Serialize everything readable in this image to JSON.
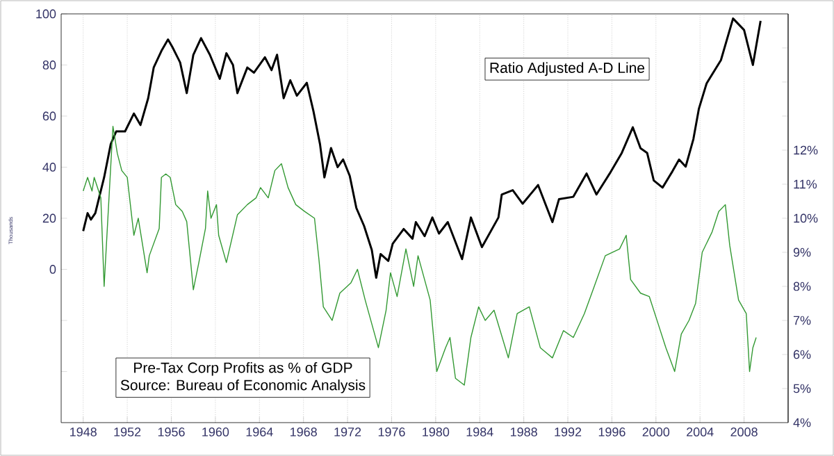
{
  "chart_data": {
    "type": "line",
    "ylabel": "Thousands",
    "xlim": [
      1946,
      2012
    ],
    "xticks": [
      1948,
      1952,
      1956,
      1960,
      1964,
      1968,
      1972,
      1976,
      1980,
      1984,
      1988,
      1992,
      1996,
      2000,
      2004,
      2008
    ],
    "ylim": [
      -60,
      100
    ],
    "yticks": [
      {
        "value": -40,
        "label": null
      },
      {
        "value": -20,
        "label": null
      },
      0,
      20,
      40,
      60,
      80,
      100
    ],
    "y2lim": [
      4,
      16
    ],
    "y2ticks": [
      {
        "value": 4,
        "label": "4%"
      },
      {
        "value": 5,
        "label": "5%"
      },
      {
        "value": 6,
        "label": "6%"
      },
      {
        "value": 7,
        "label": "7%"
      },
      {
        "value": 8,
        "label": "8%"
      },
      {
        "value": 9,
        "label": "9%"
      },
      {
        "value": 10,
        "label": "10%"
      },
      {
        "value": 11,
        "label": "11%"
      },
      {
        "value": 12,
        "label": "12%"
      },
      {
        "value": 13,
        "label": null
      },
      {
        "value": 14,
        "label": null
      },
      {
        "value": 15,
        "label": null
      },
      {
        "value": 16,
        "label": null
      }
    ],
    "grid": "x",
    "marker": "none",
    "line_style": "solid",
    "annotations": [
      "Source: Bureau of Economic Analysis"
    ],
    "series": [
      {
        "name": "Ratio Adjusted A-D Line",
        "color": "#000000",
        "axis": "y",
        "x": [
          1948.0,
          1948.4,
          1948.7,
          1949.1,
          1949.9,
          1950.5,
          1951.0,
          1951.8,
          1952.6,
          1953.2,
          1953.9,
          1954.4,
          1955.1,
          1955.7,
          1956.1,
          1956.8,
          1957.4,
          1958.0,
          1958.7,
          1959.5,
          1960.4,
          1961.0,
          1961.6,
          1962.0,
          1962.9,
          1963.5,
          1964.5,
          1965.1,
          1965.6,
          1966.2,
          1966.8,
          1967.4,
          1968.3,
          1968.9,
          1969.5,
          1969.9,
          1970.5,
          1971.1,
          1971.6,
          1972.2,
          1972.8,
          1973.5,
          1974.2,
          1974.6,
          1975.0,
          1975.7,
          1976.1,
          1977.1,
          1977.9,
          1978.2,
          1979.0,
          1979.7,
          1980.3,
          1981.1,
          1982.4,
          1983.2,
          1984.2,
          1985.7,
          1986.0,
          1987.0,
          1987.9,
          1989.3,
          1990.6,
          1991.2,
          1992.5,
          1993.7,
          1994.6,
          1995.8,
          1996.9,
          1997.9,
          1998.6,
          1999.2,
          1999.8,
          2000.6,
          2001.5,
          2002.1,
          2002.7,
          2003.4,
          2003.9,
          2004.6,
          2005.9,
          2007.0,
          2008.0,
          2008.8,
          2009.5
        ],
        "values": [
          15,
          22,
          19.5,
          22,
          36,
          49,
          54,
          54,
          61,
          56.5,
          67,
          79,
          85.5,
          90,
          87,
          81,
          69,
          84,
          90.5,
          84,
          74.6,
          84.6,
          80,
          69,
          79,
          77,
          83,
          78,
          84,
          67,
          74,
          68,
          73,
          62,
          49,
          36,
          47.5,
          40,
          43,
          36.6,
          24,
          17,
          7.6,
          -3.3,
          6,
          3.3,
          10,
          15.8,
          12,
          18.5,
          13,
          20.3,
          14,
          18.5,
          4,
          20.3,
          8.7,
          20.3,
          29.3,
          31,
          25.7,
          33,
          18.5,
          27.5,
          28.4,
          37.5,
          29.3,
          37.5,
          45.6,
          55.6,
          47.4,
          45.6,
          34.8,
          32,
          38.4,
          43,
          40.2,
          51,
          62.9,
          72.8,
          81.9,
          98.2,
          93.7,
          80,
          97.3
        ]
      },
      {
        "name": "Pre-Tax Corp Profits as % of GDP",
        "color": "#339933",
        "axis": "y2",
        "x": [
          1948.0,
          1948.4,
          1948.8,
          1949.0,
          1949.6,
          1949.9,
          1950.7,
          1951.1,
          1951.5,
          1952.0,
          1952.6,
          1953.0,
          1953.8,
          1954.0,
          1954.9,
          1955.1,
          1955.5,
          1955.9,
          1956.4,
          1957.0,
          1957.4,
          1958.0,
          1958.5,
          1959.1,
          1959.3,
          1959.6,
          1960.1,
          1960.3,
          1961.0,
          1962.0,
          1962.9,
          1963.7,
          1964.1,
          1964.8,
          1965.4,
          1966.0,
          1966.6,
          1967.3,
          1968.1,
          1969.0,
          1969.4,
          1969.8,
          1970.6,
          1971.3,
          1972.3,
          1972.9,
          1973.6,
          1974.8,
          1975.5,
          1975.9,
          1976.5,
          1977.3,
          1978.0,
          1978.4,
          1979.5,
          1980.1,
          1980.9,
          1981.3,
          1981.8,
          1982.6,
          1983.2,
          1983.9,
          1984.5,
          1985.3,
          1986.6,
          1987.4,
          1988.5,
          1989.5,
          1990.6,
          1991.6,
          1992.5,
          1993.5,
          1994.4,
          1995.4,
          1996.7,
          1997.3,
          1997.7,
          1998.6,
          1999.4,
          2000.2,
          2000.9,
          2001.7,
          2002.3,
          2003.0,
          2003.6,
          2004.2,
          2005.1,
          2005.7,
          2006.3,
          2006.7,
          2007.5,
          2008.2,
          2008.5,
          2008.8,
          2009.1
        ],
        "values": [
          10.8,
          11.2,
          10.8,
          11.2,
          10.6,
          8.0,
          12.7,
          11.9,
          11.4,
          11.2,
          9.5,
          10.0,
          8.4,
          8.9,
          9.7,
          11.2,
          11.3,
          11.2,
          10.4,
          10.2,
          9.9,
          7.9,
          8.7,
          9.7,
          10.8,
          10.0,
          10.4,
          9.5,
          8.7,
          10.1,
          10.4,
          10.6,
          10.9,
          10.6,
          11.4,
          11.6,
          10.9,
          10.4,
          10.2,
          10.0,
          8.8,
          7.4,
          7.0,
          7.8,
          8.1,
          8.5,
          7.6,
          6.2,
          7.3,
          8.4,
          7.7,
          9.1,
          8.0,
          8.9,
          7.6,
          5.5,
          6.2,
          6.5,
          5.3,
          5.1,
          6.5,
          7.4,
          7.0,
          7.3,
          5.9,
          7.2,
          7.4,
          6.2,
          5.9,
          6.7,
          6.5,
          7.2,
          8.0,
          8.9,
          9.1,
          9.5,
          8.2,
          7.8,
          7.7,
          6.9,
          6.2,
          5.5,
          6.6,
          7.0,
          7.5,
          9.0,
          9.6,
          10.2,
          10.4,
          9.2,
          7.6,
          7.2,
          5.5,
          6.2,
          6.5
        ]
      }
    ]
  }
}
